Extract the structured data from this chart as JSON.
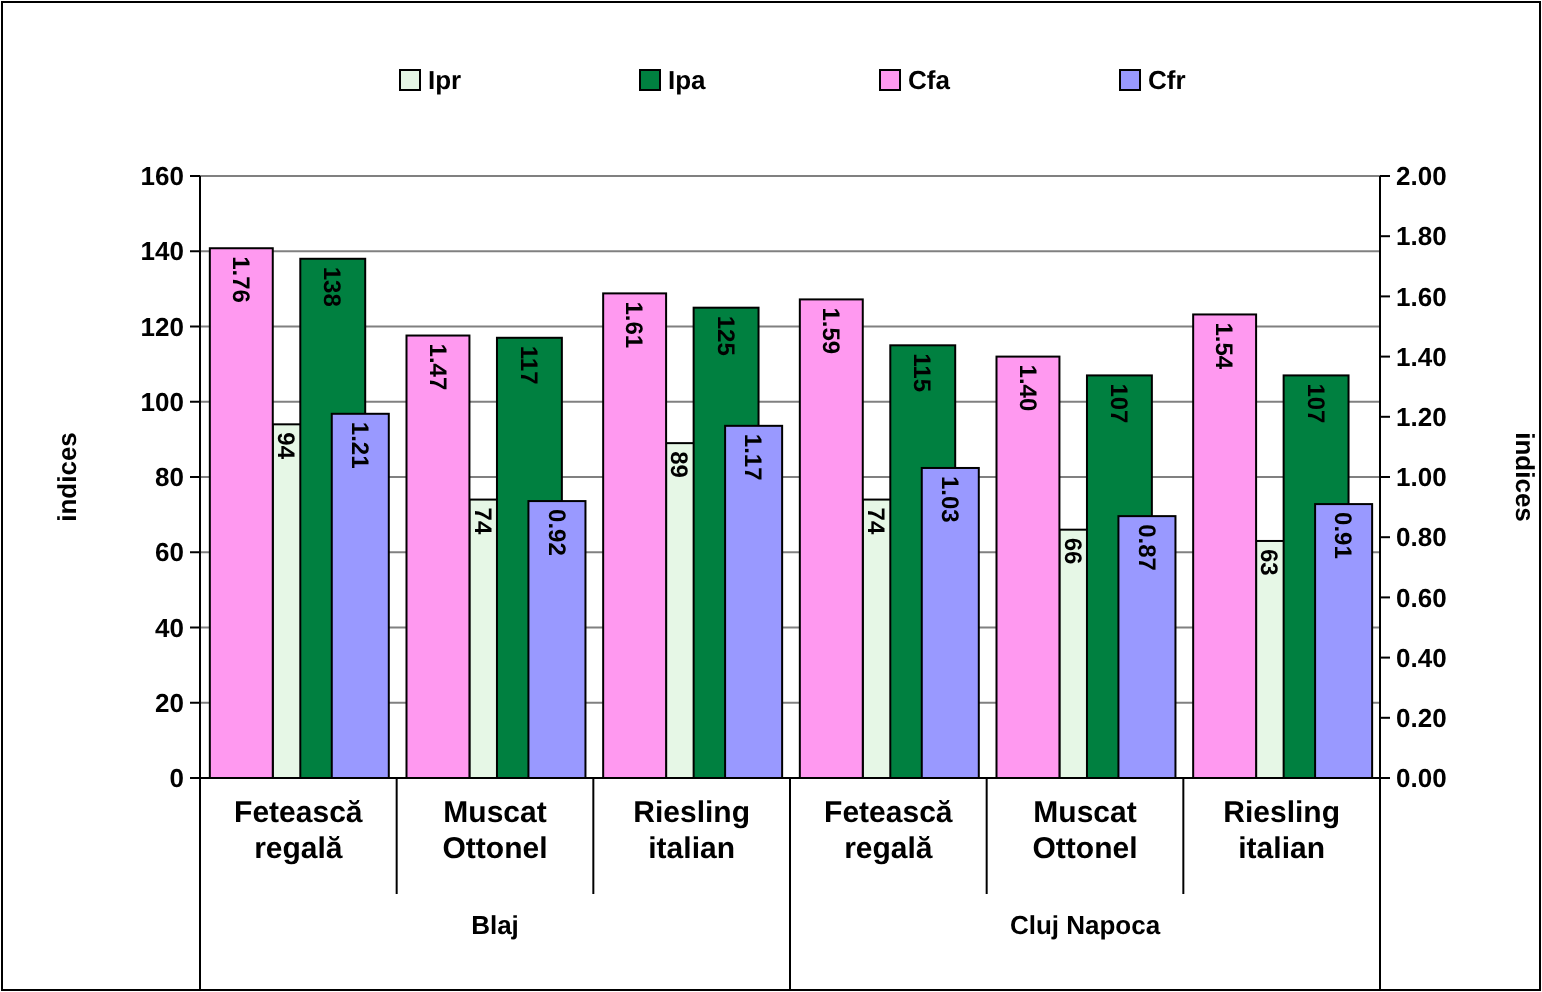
{
  "chart_data": {
    "type": "bar",
    "categories": [
      "Fetească regală",
      "Muscat Ottonel",
      "Riesling italian",
      "Fetească regală",
      "Muscat Ottonel",
      "Riesling italian"
    ],
    "series": [
      {
        "name": "Ipr",
        "color": "#e6f7e6",
        "values": [
          94,
          74,
          89,
          74,
          66,
          63
        ]
      },
      {
        "name": "Ipa",
        "color": "#008040",
        "values": [
          138,
          117,
          125,
          115,
          107,
          107
        ]
      },
      {
        "name": "Cfa",
        "color": "#ff99f0",
        "axis": "y2",
        "values": [
          1.76,
          1.47,
          1.61,
          1.59,
          1.4,
          1.54
        ],
        "value_labels": [
          "1.76",
          "1.47",
          "1.61",
          "1.59",
          "1.40",
          "1.54"
        ]
      },
      {
        "name": "Cfr",
        "color": "#9999ff",
        "axis": "y2",
        "values": [
          1.21,
          0.92,
          1.17,
          1.03,
          0.87,
          0.91
        ],
        "value_labels": [
          "1.21",
          "0.92",
          "1.17",
          "1.03",
          "0.87",
          "0.91"
        ]
      }
    ],
    "ylabel": "indices",
    "y2label": "indices",
    "annotations": [
      "Blaj",
      "Cluj Napoca"
    ],
    "ylim": [
      0,
      160
    ],
    "yticks": [
      0,
      20,
      40,
      60,
      80,
      100,
      120,
      140,
      160
    ],
    "y2lim": [
      0,
      2
    ],
    "y2ticks": [
      {
        "value": 0,
        "label": "0.00"
      },
      {
        "value": 0.2,
        "label": "0.20"
      },
      {
        "value": 0.4,
        "label": "0.40"
      },
      {
        "value": 0.6,
        "label": "0.60"
      },
      {
        "value": 0.8,
        "label": "0.80"
      },
      {
        "value": 1,
        "label": "1.00"
      },
      {
        "value": 1.2,
        "label": "1.20"
      },
      {
        "value": 1.4,
        "label": "1.40"
      },
      {
        "value": 1.6,
        "label": "1.60"
      },
      {
        "value": 1.8,
        "label": "1.80"
      },
      {
        "value": 2,
        "label": "2.00"
      }
    ],
    "grid": "y",
    "legend": "top",
    "data_labels": true
  }
}
